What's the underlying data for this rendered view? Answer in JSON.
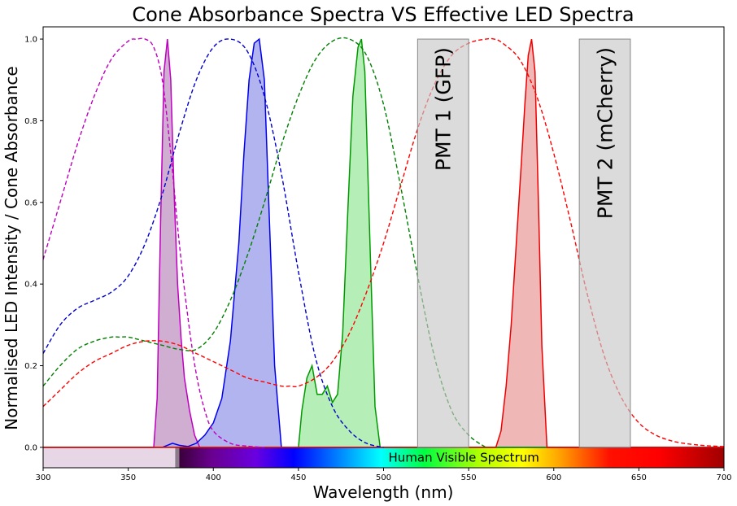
{
  "chart_data": {
    "type": "line",
    "title": "Cone Absorbance Spectra VS Effective LED Spectra",
    "xlabel": "Wavelength (nm)",
    "ylabel": "Normalised LED Intensity / Cone Absorbance",
    "xlim": [
      300,
      700
    ],
    "ylim": [
      -0.05,
      1.03
    ],
    "x_ticks": [
      300,
      350,
      400,
      450,
      500,
      550,
      600,
      650,
      700
    ],
    "y_ticks": [
      0.0,
      0.2,
      0.4,
      0.6,
      0.8,
      1.0
    ],
    "grid": false,
    "cone_absorbance": [
      {
        "color": "#bf00bf",
        "style": "dashed",
        "x": [
          300,
          310,
          320,
          330,
          340,
          350,
          355,
          360,
          365,
          370,
          375,
          380,
          385,
          390,
          395,
          400,
          410,
          420,
          430
        ],
        "y": [
          0.46,
          0.6,
          0.74,
          0.86,
          0.95,
          0.995,
          1.0,
          1.0,
          0.98,
          0.9,
          0.72,
          0.5,
          0.32,
          0.18,
          0.09,
          0.04,
          0.01,
          0.003,
          0.0
        ]
      },
      {
        "color": "#0000cc",
        "style": "dashed",
        "x": [
          300,
          310,
          320,
          330,
          340,
          350,
          360,
          370,
          380,
          390,
          400,
          410,
          420,
          430,
          440,
          450,
          460,
          470,
          480,
          490,
          500
        ],
        "y": [
          0.23,
          0.3,
          0.34,
          0.36,
          0.38,
          0.42,
          0.5,
          0.62,
          0.77,
          0.9,
          0.98,
          1.0,
          0.97,
          0.86,
          0.67,
          0.43,
          0.22,
          0.1,
          0.04,
          0.01,
          0.0
        ]
      },
      {
        "color": "#007f00",
        "style": "dashed",
        "x": [
          300,
          310,
          320,
          330,
          340,
          345,
          350,
          360,
          370,
          380,
          390,
          400,
          410,
          420,
          430,
          440,
          450,
          460,
          470,
          480,
          490,
          500,
          510,
          520,
          530,
          540,
          550,
          560
        ],
        "y": [
          0.15,
          0.2,
          0.24,
          0.26,
          0.27,
          0.27,
          0.27,
          0.26,
          0.25,
          0.24,
          0.24,
          0.28,
          0.36,
          0.47,
          0.6,
          0.74,
          0.86,
          0.95,
          0.995,
          1.0,
          0.96,
          0.84,
          0.64,
          0.42,
          0.22,
          0.09,
          0.03,
          0.0
        ]
      },
      {
        "color": "#ff0000",
        "style": "dashed",
        "x": [
          300,
          310,
          320,
          330,
          340,
          350,
          360,
          370,
          380,
          390,
          400,
          410,
          420,
          430,
          440,
          445,
          450,
          460,
          470,
          480,
          490,
          500,
          510,
          520,
          530,
          540,
          550,
          560,
          565,
          570,
          580,
          590,
          600,
          610,
          620,
          630,
          640,
          650,
          660,
          670,
          680,
          690,
          700
        ],
        "y": [
          0.1,
          0.14,
          0.18,
          0.21,
          0.23,
          0.25,
          0.26,
          0.26,
          0.25,
          0.23,
          0.21,
          0.19,
          0.17,
          0.16,
          0.15,
          0.15,
          0.15,
          0.17,
          0.21,
          0.28,
          0.38,
          0.5,
          0.64,
          0.78,
          0.89,
          0.96,
          0.99,
          1.0,
          1.0,
          0.99,
          0.95,
          0.86,
          0.72,
          0.55,
          0.37,
          0.22,
          0.12,
          0.06,
          0.03,
          0.015,
          0.008,
          0.004,
          0.002
        ]
      }
    ],
    "led_spectra": [
      {
        "color": "#bf00bf",
        "fill": "#cdaacf",
        "x": [
          300,
          365,
          367,
          369,
          371,
          373,
          375,
          377,
          379,
          381,
          383,
          386,
          389,
          392,
          700
        ],
        "y": [
          0.0,
          0.0,
          0.12,
          0.55,
          0.92,
          1.0,
          0.9,
          0.62,
          0.4,
          0.27,
          0.17,
          0.09,
          0.03,
          0.0,
          0.0
        ]
      },
      {
        "color": "#0000ee",
        "fill": "#aeb0ee",
        "x": [
          300,
          370,
          376,
          380,
          385,
          390,
          395,
          400,
          405,
          410,
          415,
          418,
          421,
          424,
          427,
          430,
          433,
          436,
          440,
          700
        ],
        "y": [
          0.0,
          0.0,
          0.01,
          0.005,
          0.002,
          0.01,
          0.03,
          0.06,
          0.12,
          0.26,
          0.5,
          0.72,
          0.9,
          0.99,
          1.0,
          0.9,
          0.55,
          0.2,
          0.0,
          0.0
        ]
      },
      {
        "color": "#009900",
        "fill": "#b1eeb3",
        "x": [
          300,
          450,
          452,
          455,
          458,
          461,
          464,
          467,
          470,
          473,
          476,
          479,
          482,
          485,
          487,
          489,
          492,
          495,
          498,
          700
        ],
        "y": [
          0.0,
          0.0,
          0.09,
          0.17,
          0.2,
          0.13,
          0.13,
          0.15,
          0.11,
          0.13,
          0.28,
          0.58,
          0.86,
          0.98,
          1.0,
          0.92,
          0.5,
          0.1,
          0.0,
          0.0
        ]
      },
      {
        "color": "#ee0000",
        "fill": "#efb3b3",
        "x": [
          300,
          566,
          569,
          572,
          575,
          578,
          581,
          583,
          585,
          587,
          589,
          591,
          593,
          596,
          700
        ],
        "y": [
          0.0,
          0.0,
          0.04,
          0.15,
          0.3,
          0.5,
          0.7,
          0.84,
          0.96,
          1.0,
          0.92,
          0.6,
          0.25,
          0.0,
          0.0
        ]
      }
    ],
    "pmt_bands": [
      {
        "label": "PMT  1 (GFP)",
        "x_range": [
          520,
          550
        ],
        "y_range": [
          0,
          1.0
        ]
      },
      {
        "label": "PMT  2 (mCherry)",
        "x_range": [
          615,
          645
        ],
        "y_range": [
          0,
          1.0
        ]
      }
    ],
    "visible_spectrum_bar": {
      "label": "Human Visible Spectrum",
      "x_range": [
        380,
        700
      ],
      "y_range": [
        -0.05,
        0.0
      ]
    },
    "uv_bar": {
      "x_range": [
        300,
        380
      ],
      "y_range": [
        -0.05,
        0.0
      ],
      "color": "#e6d6e6"
    }
  }
}
